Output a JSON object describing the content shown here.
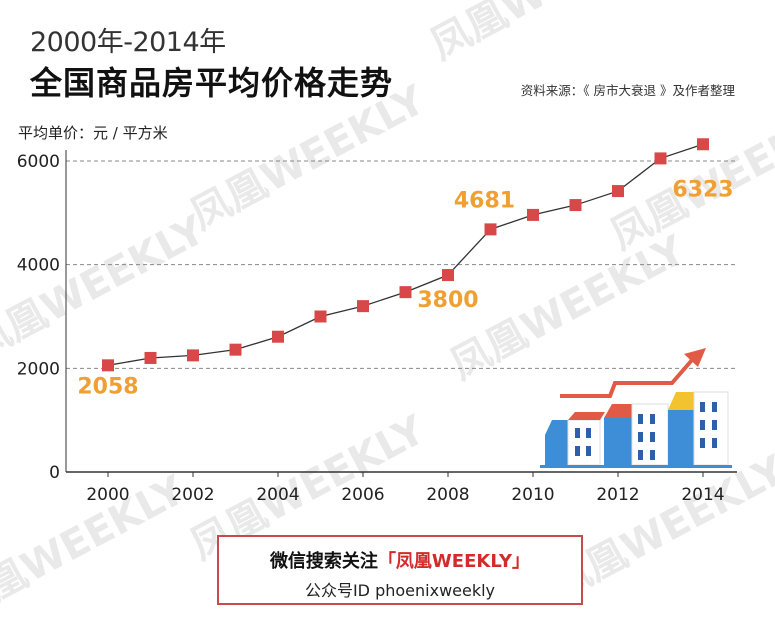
{
  "header": {
    "subtitle": "2000年-2014年",
    "title": "全国商品房平均价格走势",
    "source": "资料来源：《 房市大衰退 》及作者整理"
  },
  "unit_label": "平均单价：元 / 平方米",
  "watermark": "凤凰WEEKLY",
  "footer": {
    "line1_prefix": "微信搜索关注",
    "line1_brand": "「凤凰WEEKLY」",
    "line2": "公众号ID  phoenixweekly"
  },
  "colors": {
    "marker": "#d94848",
    "line": "#333333",
    "label": "#f0a030",
    "grid": "#888888",
    "arrow": "#e05a45"
  },
  "chart_data": {
    "type": "line",
    "title": "全国商品房平均价格走势",
    "subtitle": "2000年-2014年",
    "xlabel": "",
    "ylabel": "平均单价：元 / 平方米",
    "x": [
      2000,
      2001,
      2002,
      2003,
      2004,
      2005,
      2006,
      2007,
      2008,
      2009,
      2010,
      2011,
      2012,
      2013,
      2014
    ],
    "series": [
      {
        "values": [
          2058,
          2200,
          2250,
          2360,
          2610,
          3000,
          3200,
          3470,
          3800,
          4681,
          4960,
          5150,
          5420,
          6050,
          6323
        ]
      }
    ],
    "x_ticks": [
      "2000",
      "2002",
      "2004",
      "2006",
      "2008",
      "2010",
      "2012",
      "2014"
    ],
    "y_ticks": [
      "0",
      "2000",
      "4000",
      "6000"
    ],
    "ylim": [
      0,
      6500
    ],
    "grid": true,
    "annotations": [
      {
        "x": 2000,
        "text": "2058"
      },
      {
        "x": 2008,
        "text": "3800"
      },
      {
        "x": 2009,
        "text": "4681"
      },
      {
        "x": 2014,
        "text": "6323"
      }
    ]
  }
}
